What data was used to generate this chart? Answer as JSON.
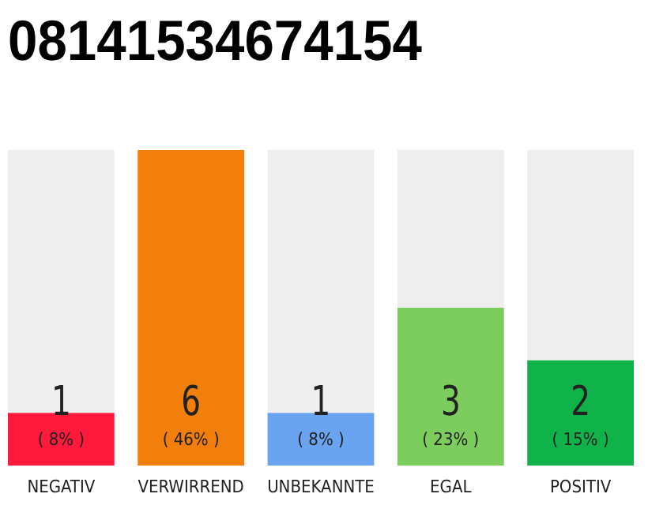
{
  "chart_data": {
    "type": "bar",
    "title": "08141534674154",
    "categories": [
      "NEGATIV",
      "VERWIRREND",
      "UNBEKANNTE",
      "EGAL",
      "POSITIV"
    ],
    "values": [
      1,
      6,
      1,
      3,
      2
    ],
    "colors": [
      "#ff1a3c",
      "#f27e0b",
      "#6aa4f0",
      "#7dcc5e",
      "#10b349"
    ],
    "data_labels": true,
    "annotations": [
      "( 8% )",
      "( 46% )",
      "( 8% )",
      "( 23% )",
      "( 15% )"
    ],
    "grid": false
  }
}
